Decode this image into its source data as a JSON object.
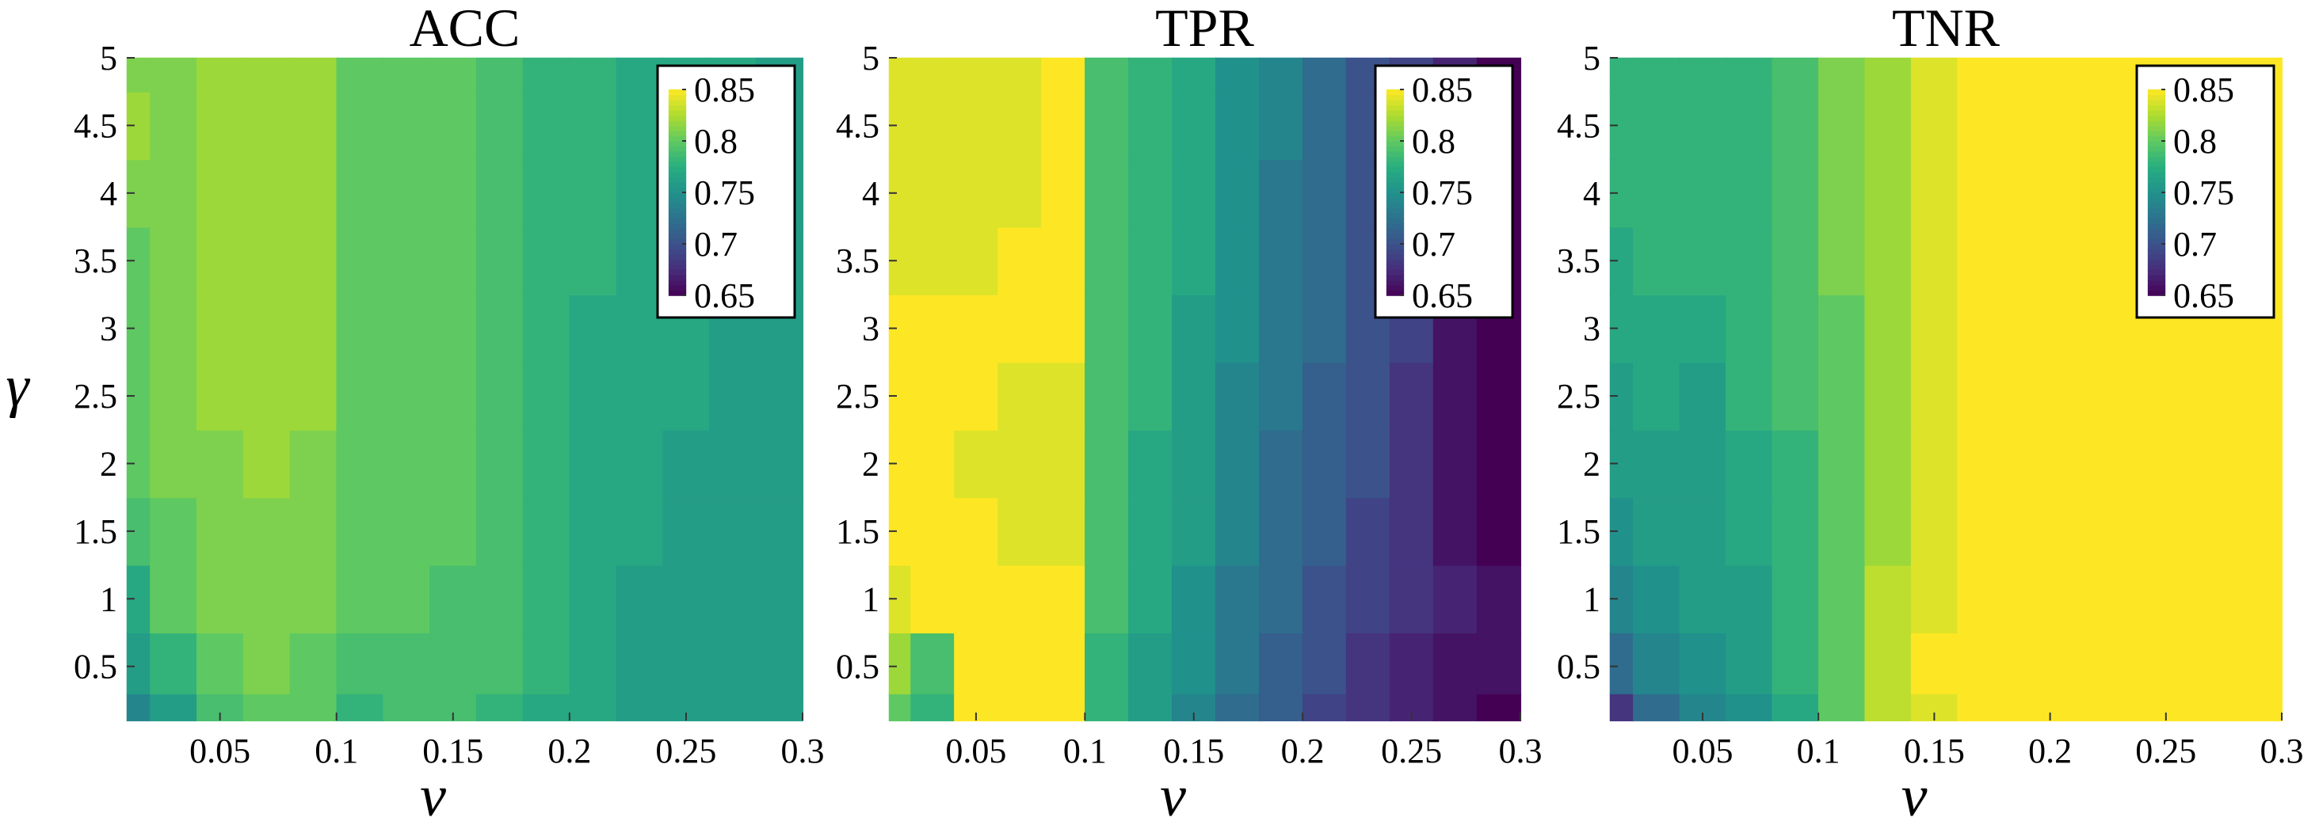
{
  "chart_data": [
    {
      "type": "heatmap",
      "title": "ACC",
      "xlabel": "ν",
      "ylabel": "γ",
      "x": [
        0.01,
        0.03,
        0.05,
        0.07,
        0.09,
        0.11,
        0.13,
        0.15,
        0.17,
        0.19,
        0.21,
        0.23,
        0.25,
        0.27,
        0.29
      ],
      "y": [
        0.1,
        0.5,
        1,
        1.5,
        2,
        2.5,
        3,
        3.5,
        4,
        4.5,
        5
      ],
      "xlim": [
        0.01,
        0.3
      ],
      "ylim": [
        0.1,
        5
      ],
      "xticks": [
        "0.05",
        "0.1",
        "0.15",
        "0.2",
        "0.25",
        "0.3"
      ],
      "yticks": [
        "0.5",
        "1",
        "1.5",
        "2",
        "2.5",
        "3",
        "3.5",
        "4",
        "4.5",
        "5"
      ],
      "clim": [
        0.65,
        0.85
      ],
      "colorbar_ticks": [
        "0.85",
        "0.8",
        "0.75",
        "0.7",
        "0.65"
      ],
      "colorbar_position": "top-right",
      "colormap": "viridis",
      "z": [
        [
          0.74,
          0.76,
          0.79,
          0.8,
          0.8,
          0.78,
          0.79,
          0.79,
          0.78,
          0.77,
          0.77,
          0.76,
          0.76,
          0.76,
          0.76
        ],
        [
          0.76,
          0.78,
          0.8,
          0.81,
          0.8,
          0.79,
          0.79,
          0.79,
          0.79,
          0.78,
          0.77,
          0.76,
          0.76,
          0.76,
          0.76
        ],
        [
          0.77,
          0.8,
          0.81,
          0.81,
          0.81,
          0.8,
          0.8,
          0.79,
          0.79,
          0.78,
          0.77,
          0.76,
          0.76,
          0.76,
          0.76
        ],
        [
          0.79,
          0.8,
          0.81,
          0.81,
          0.81,
          0.8,
          0.8,
          0.8,
          0.79,
          0.78,
          0.77,
          0.77,
          0.76,
          0.76,
          0.76
        ],
        [
          0.8,
          0.81,
          0.81,
          0.82,
          0.81,
          0.8,
          0.8,
          0.8,
          0.79,
          0.78,
          0.77,
          0.77,
          0.76,
          0.76,
          0.76
        ],
        [
          0.8,
          0.81,
          0.82,
          0.82,
          0.82,
          0.8,
          0.8,
          0.8,
          0.79,
          0.78,
          0.77,
          0.77,
          0.77,
          0.76,
          0.76
        ],
        [
          0.8,
          0.81,
          0.82,
          0.82,
          0.82,
          0.8,
          0.8,
          0.8,
          0.79,
          0.78,
          0.77,
          0.77,
          0.77,
          0.76,
          0.76
        ],
        [
          0.8,
          0.81,
          0.82,
          0.82,
          0.82,
          0.8,
          0.8,
          0.8,
          0.79,
          0.78,
          0.78,
          0.77,
          0.77,
          0.77,
          0.76
        ],
        [
          0.81,
          0.81,
          0.82,
          0.82,
          0.82,
          0.8,
          0.8,
          0.8,
          0.79,
          0.78,
          0.78,
          0.77,
          0.77,
          0.77,
          0.76
        ],
        [
          0.82,
          0.81,
          0.82,
          0.82,
          0.82,
          0.8,
          0.8,
          0.8,
          0.79,
          0.78,
          0.78,
          0.77,
          0.77,
          0.77,
          0.76
        ],
        [
          0.81,
          0.81,
          0.82,
          0.82,
          0.82,
          0.8,
          0.8,
          0.8,
          0.79,
          0.78,
          0.78,
          0.77,
          0.77,
          0.77,
          0.76
        ]
      ]
    },
    {
      "type": "heatmap",
      "title": "TPR",
      "xlabel": "ν",
      "ylabel": "",
      "x": [
        0.01,
        0.03,
        0.05,
        0.07,
        0.09,
        0.11,
        0.13,
        0.15,
        0.17,
        0.19,
        0.21,
        0.23,
        0.25,
        0.27,
        0.29
      ],
      "y": [
        0.1,
        0.5,
        1,
        1.5,
        2,
        2.5,
        3,
        3.5,
        4,
        4.5,
        5
      ],
      "xlim": [
        0.01,
        0.3
      ],
      "ylim": [
        0.1,
        5
      ],
      "xticks": [
        "0.05",
        "0.1",
        "0.15",
        "0.2",
        "0.25",
        "0.3"
      ],
      "yticks": [
        "0.5",
        "1",
        "1.5",
        "2",
        "2.5",
        "3",
        "3.5",
        "4",
        "4.5",
        "5"
      ],
      "clim": [
        0.65,
        0.85
      ],
      "colorbar_ticks": [
        "0.85",
        "0.8",
        "0.75",
        "0.7",
        "0.65"
      ],
      "colorbar_position": "top-right",
      "colormap": "viridis",
      "z": [
        [
          0.8,
          0.78,
          0.86,
          0.86,
          0.86,
          0.78,
          0.76,
          0.74,
          0.72,
          0.71,
          0.69,
          0.68,
          0.67,
          0.66,
          0.65
        ],
        [
          0.82,
          0.79,
          0.86,
          0.86,
          0.86,
          0.78,
          0.76,
          0.75,
          0.73,
          0.71,
          0.7,
          0.68,
          0.67,
          0.66,
          0.66
        ],
        [
          0.84,
          0.86,
          0.86,
          0.86,
          0.86,
          0.79,
          0.77,
          0.75,
          0.73,
          0.72,
          0.7,
          0.69,
          0.68,
          0.67,
          0.66
        ],
        [
          0.86,
          0.86,
          0.85,
          0.84,
          0.84,
          0.79,
          0.77,
          0.76,
          0.74,
          0.72,
          0.71,
          0.69,
          0.68,
          0.66,
          0.65
        ],
        [
          0.86,
          0.85,
          0.84,
          0.84,
          0.84,
          0.79,
          0.77,
          0.76,
          0.74,
          0.72,
          0.71,
          0.7,
          0.68,
          0.66,
          0.65
        ],
        [
          0.86,
          0.85,
          0.85,
          0.84,
          0.84,
          0.79,
          0.78,
          0.76,
          0.74,
          0.73,
          0.71,
          0.7,
          0.68,
          0.66,
          0.65
        ],
        [
          0.85,
          0.85,
          0.85,
          0.85,
          0.85,
          0.79,
          0.78,
          0.76,
          0.75,
          0.73,
          0.72,
          0.7,
          0.69,
          0.66,
          0.65
        ],
        [
          0.84,
          0.84,
          0.84,
          0.85,
          0.85,
          0.79,
          0.78,
          0.77,
          0.75,
          0.73,
          0.72,
          0.7,
          0.69,
          0.66,
          0.65
        ],
        [
          0.84,
          0.84,
          0.84,
          0.84,
          0.85,
          0.79,
          0.78,
          0.77,
          0.75,
          0.73,
          0.72,
          0.7,
          0.69,
          0.67,
          0.65
        ],
        [
          0.84,
          0.84,
          0.84,
          0.84,
          0.85,
          0.79,
          0.78,
          0.77,
          0.75,
          0.74,
          0.72,
          0.7,
          0.69,
          0.67,
          0.65
        ],
        [
          0.84,
          0.84,
          0.84,
          0.84,
          0.85,
          0.79,
          0.78,
          0.77,
          0.75,
          0.74,
          0.72,
          0.7,
          0.69,
          0.67,
          0.65
        ]
      ]
    },
    {
      "type": "heatmap",
      "title": "TNR",
      "xlabel": "ν",
      "ylabel": "",
      "x": [
        0.01,
        0.03,
        0.05,
        0.07,
        0.09,
        0.11,
        0.13,
        0.15,
        0.17,
        0.19,
        0.21,
        0.23,
        0.25,
        0.27,
        0.29
      ],
      "y": [
        0.1,
        0.5,
        1,
        1.5,
        2,
        2.5,
        3,
        3.5,
        4,
        4.5,
        5
      ],
      "xlim": [
        0.01,
        0.3
      ],
      "ylim": [
        0.1,
        5
      ],
      "xticks": [
        "0.05",
        "0.1",
        "0.15",
        "0.2",
        "0.25",
        "0.3"
      ],
      "yticks": [
        "0.5",
        "1",
        "1.5",
        "2",
        "2.5",
        "3",
        "3.5",
        "4",
        "4.5",
        "5"
      ],
      "clim": [
        0.65,
        0.85
      ],
      "colorbar_ticks": [
        "0.85",
        "0.8",
        "0.75",
        "0.7",
        "0.65"
      ],
      "colorbar_position": "top-right",
      "colormap": "viridis",
      "z": [
        [
          0.68,
          0.72,
          0.74,
          0.75,
          0.77,
          0.8,
          0.83,
          0.84,
          0.85,
          0.86,
          0.86,
          0.86,
          0.86,
          0.86,
          0.86
        ],
        [
          0.72,
          0.74,
          0.75,
          0.76,
          0.78,
          0.8,
          0.83,
          0.85,
          0.86,
          0.86,
          0.86,
          0.86,
          0.86,
          0.86,
          0.86
        ],
        [
          0.74,
          0.75,
          0.76,
          0.76,
          0.78,
          0.8,
          0.83,
          0.84,
          0.86,
          0.86,
          0.86,
          0.86,
          0.86,
          0.86,
          0.86
        ],
        [
          0.75,
          0.76,
          0.76,
          0.77,
          0.78,
          0.8,
          0.82,
          0.84,
          0.86,
          0.86,
          0.86,
          0.86,
          0.86,
          0.86,
          0.86
        ],
        [
          0.76,
          0.76,
          0.76,
          0.77,
          0.78,
          0.8,
          0.82,
          0.84,
          0.86,
          0.86,
          0.86,
          0.86,
          0.86,
          0.86,
          0.86
        ],
        [
          0.76,
          0.77,
          0.76,
          0.78,
          0.79,
          0.8,
          0.82,
          0.84,
          0.86,
          0.86,
          0.86,
          0.86,
          0.86,
          0.86,
          0.86
        ],
        [
          0.77,
          0.77,
          0.77,
          0.78,
          0.79,
          0.8,
          0.82,
          0.84,
          0.86,
          0.86,
          0.86,
          0.86,
          0.86,
          0.86,
          0.86
        ],
        [
          0.77,
          0.78,
          0.78,
          0.78,
          0.79,
          0.81,
          0.82,
          0.84,
          0.86,
          0.86,
          0.86,
          0.86,
          0.86,
          0.86,
          0.86
        ],
        [
          0.78,
          0.78,
          0.78,
          0.78,
          0.79,
          0.81,
          0.82,
          0.84,
          0.86,
          0.86,
          0.86,
          0.86,
          0.86,
          0.86,
          0.86
        ],
        [
          0.78,
          0.78,
          0.78,
          0.78,
          0.79,
          0.81,
          0.82,
          0.84,
          0.86,
          0.86,
          0.86,
          0.86,
          0.86,
          0.86,
          0.86
        ],
        [
          0.78,
          0.78,
          0.78,
          0.78,
          0.79,
          0.81,
          0.82,
          0.84,
          0.86,
          0.86,
          0.86,
          0.86,
          0.86,
          0.86,
          0.86
        ]
      ]
    }
  ]
}
